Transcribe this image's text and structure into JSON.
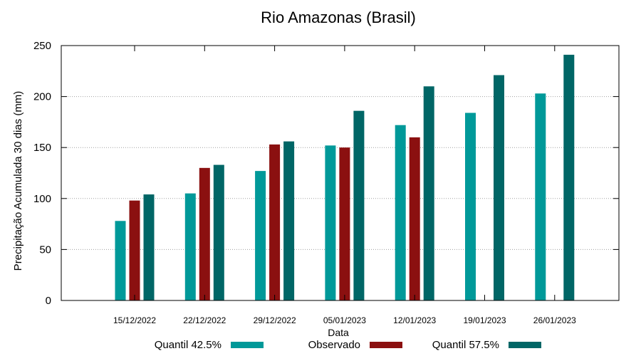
{
  "chart_data": {
    "type": "bar",
    "title": "Rio Amazonas (Brasil)",
    "xlabel": "Data",
    "ylabel": "Precipitação Acumulada 30 dias (mm)",
    "ylim": [
      0,
      250
    ],
    "yticks": [
      0,
      50,
      100,
      150,
      200,
      250
    ],
    "grid": true,
    "legend_position": "bottom",
    "categories": [
      "15/12/2022",
      "22/12/2022",
      "29/12/2022",
      "05/01/2023",
      "12/01/2023",
      "19/01/2023",
      "26/01/2023"
    ],
    "series": [
      {
        "name": "Quantil 42.5%",
        "color": "#009999",
        "values": [
          78,
          105,
          127,
          152,
          172,
          184,
          203
        ]
      },
      {
        "name": "Observado",
        "color": "#8b1010",
        "values": [
          98,
          130,
          153,
          150,
          160,
          null,
          null
        ]
      },
      {
        "name": "Quantil 57.5%",
        "color": "#006666",
        "values": [
          104,
          133,
          156,
          186,
          210,
          221,
          241
        ]
      }
    ]
  }
}
